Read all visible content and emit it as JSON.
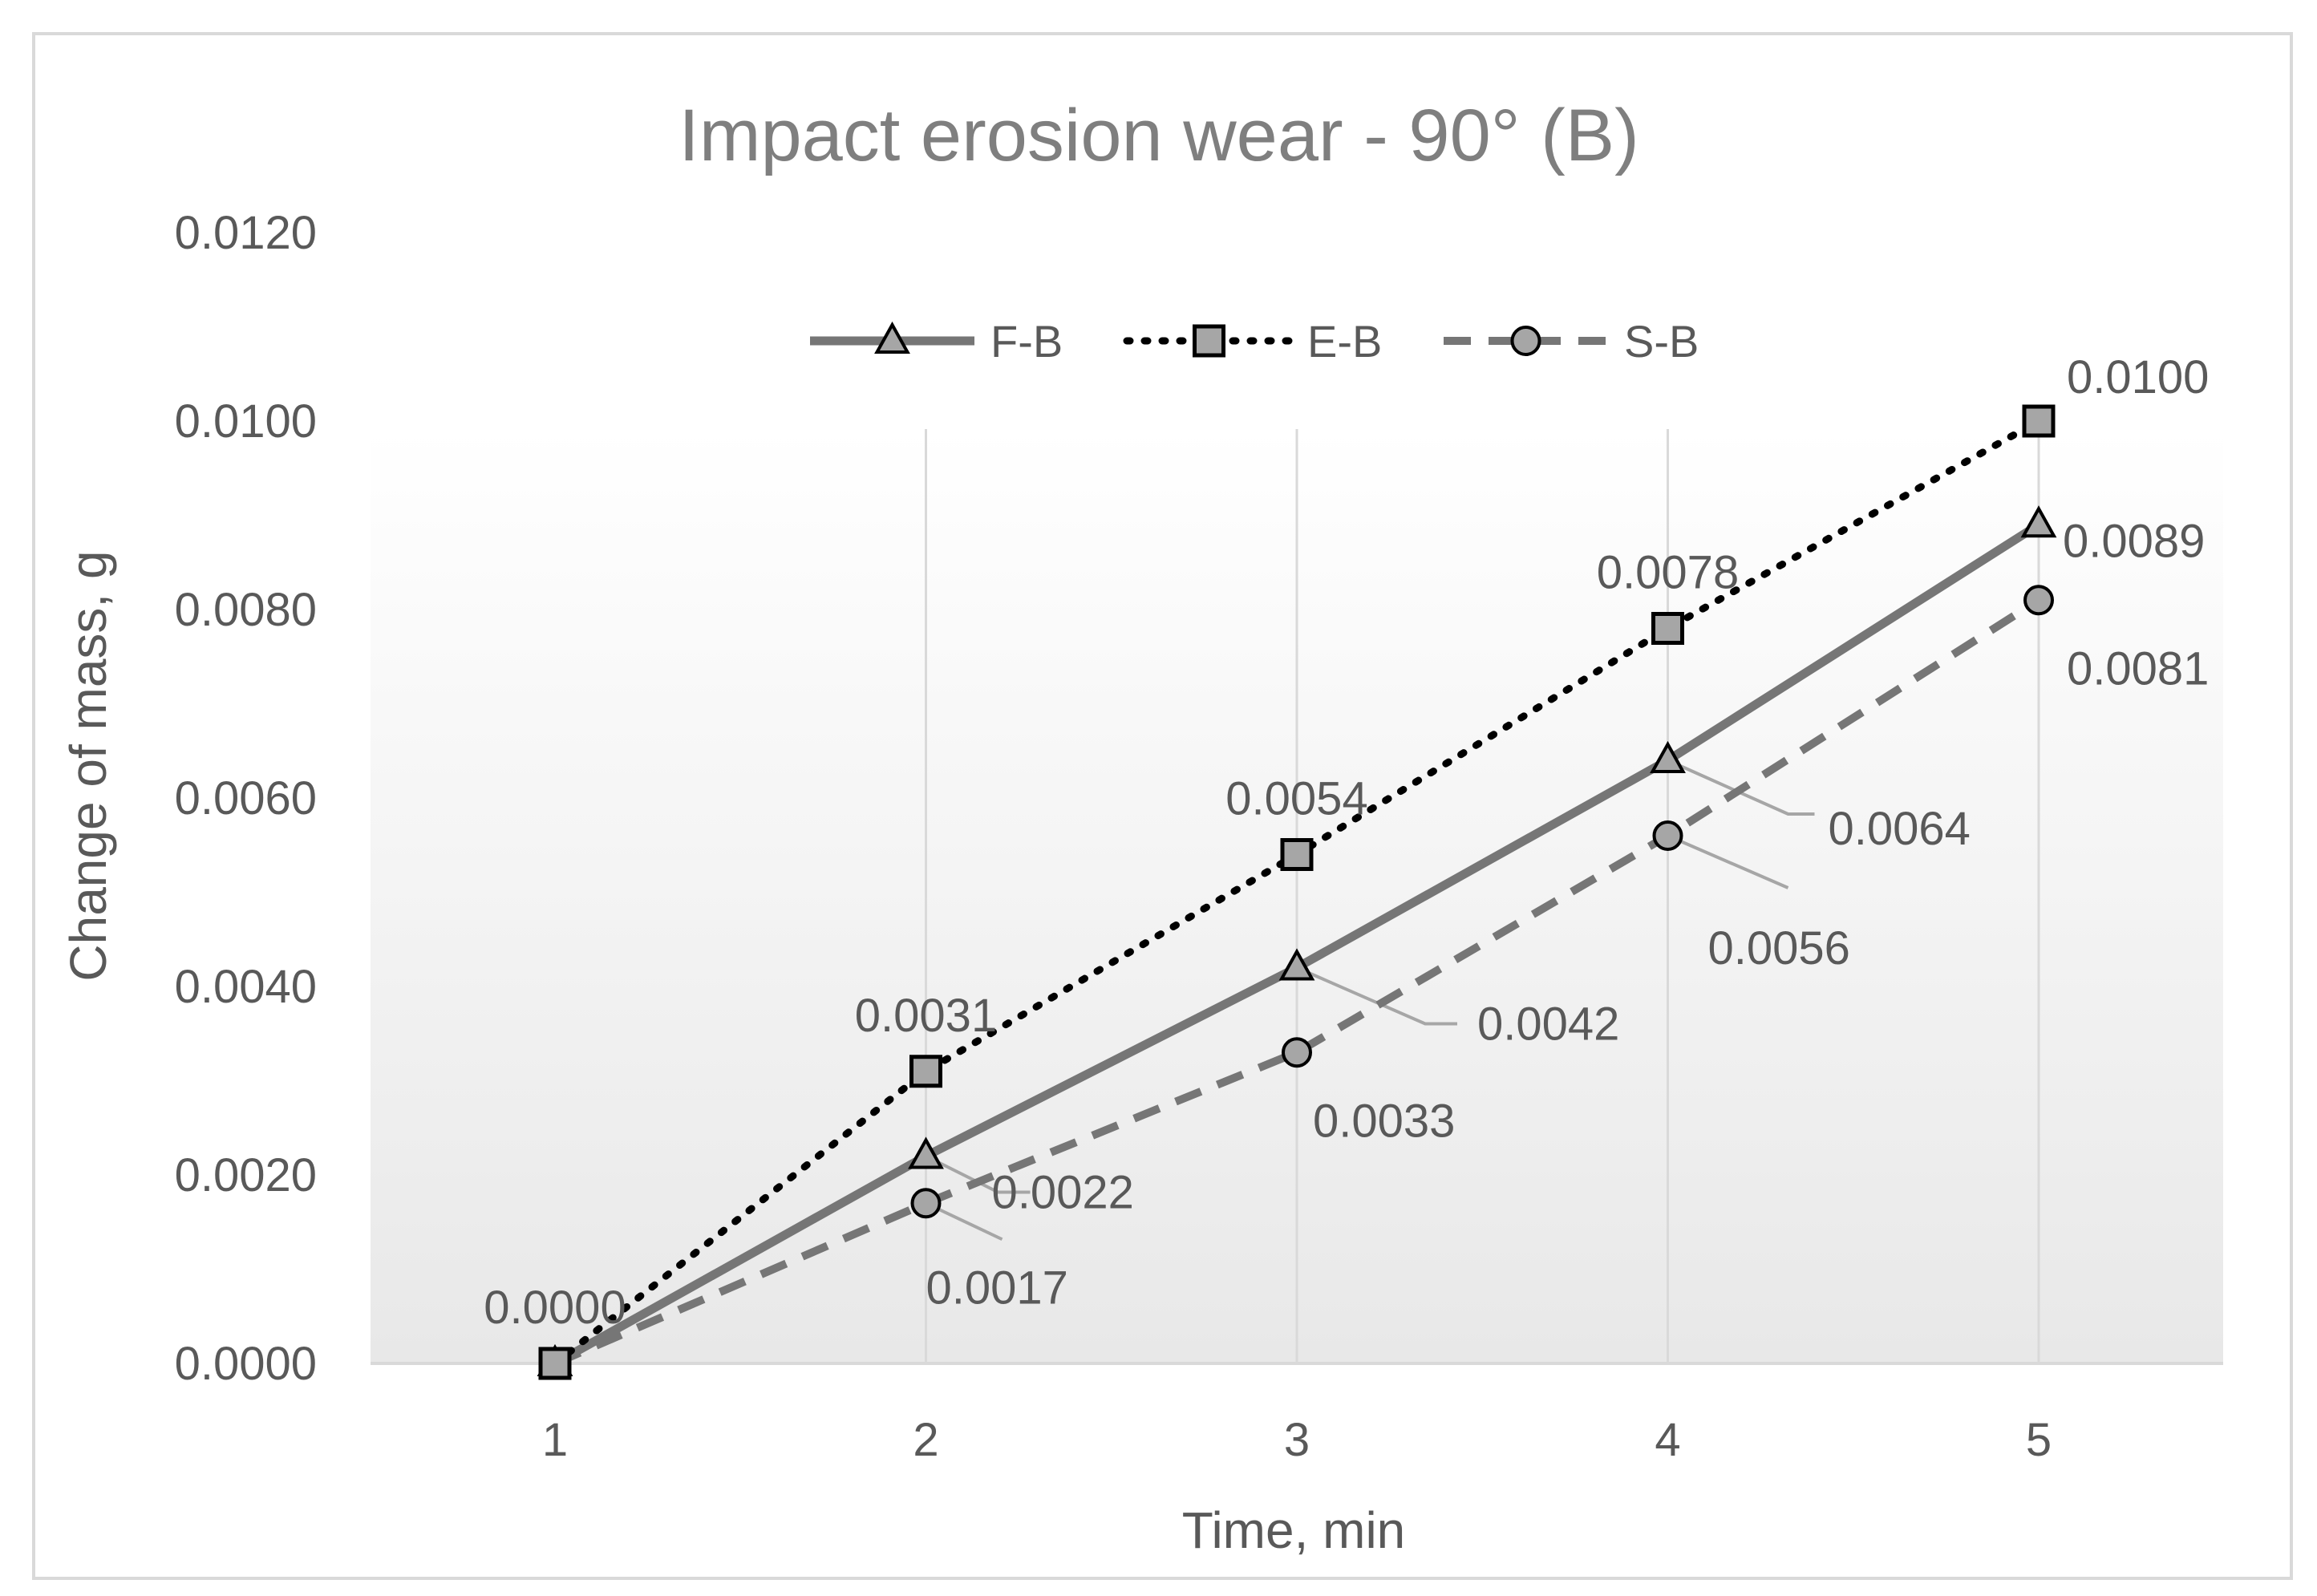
{
  "chart_data": {
    "type": "line",
    "title": "Impact erosion wear - 90° (B)",
    "xlabel": "Time, min",
    "ylabel": "Change of mass, g",
    "categories": [
      "1",
      "2",
      "3",
      "4",
      "5"
    ],
    "x": [
      1,
      2,
      3,
      4,
      5
    ],
    "ylim": [
      0,
      0.012
    ],
    "yticks": [
      "0.0000",
      "0.0020",
      "0.0040",
      "0.0060",
      "0.0080",
      "0.0100",
      "0.0120"
    ],
    "grid": "vertical",
    "legend": "top",
    "series": [
      {
        "name": "F-B",
        "values": [
          0.0,
          0.0022,
          0.0042,
          0.0064,
          0.0089
        ],
        "labels": [
          "",
          "0.0022",
          "0.0042",
          "0.0064",
          "0.0089"
        ],
        "line": "solid",
        "marker": "triangle",
        "color": "#767676"
      },
      {
        "name": "E-B",
        "values": [
          0.0,
          0.0031,
          0.0054,
          0.0078,
          0.01
        ],
        "labels": [
          "0.0000",
          "0.0031",
          "0.0054",
          "0.0078",
          "0.0100"
        ],
        "line": "dotted",
        "marker": "square",
        "color": "#000000"
      },
      {
        "name": "S-B",
        "values": [
          0.0,
          0.0017,
          0.0033,
          0.0056,
          0.0081
        ],
        "labels": [
          "",
          "0.0017",
          "0.0033",
          "0.0056",
          "0.0081"
        ],
        "line": "dashed",
        "marker": "circle",
        "color": "#767676"
      }
    ],
    "colors": {
      "marker_fill": "#a6a6a6",
      "gridline": "#d9d9d9",
      "axis_line": "#d9d9d9",
      "leader_line": "#a6a6a6",
      "plot_gradient_top": "#ffffff",
      "plot_gradient_bottom": "#e8e8e8",
      "border": "#d9d9d9"
    }
  }
}
